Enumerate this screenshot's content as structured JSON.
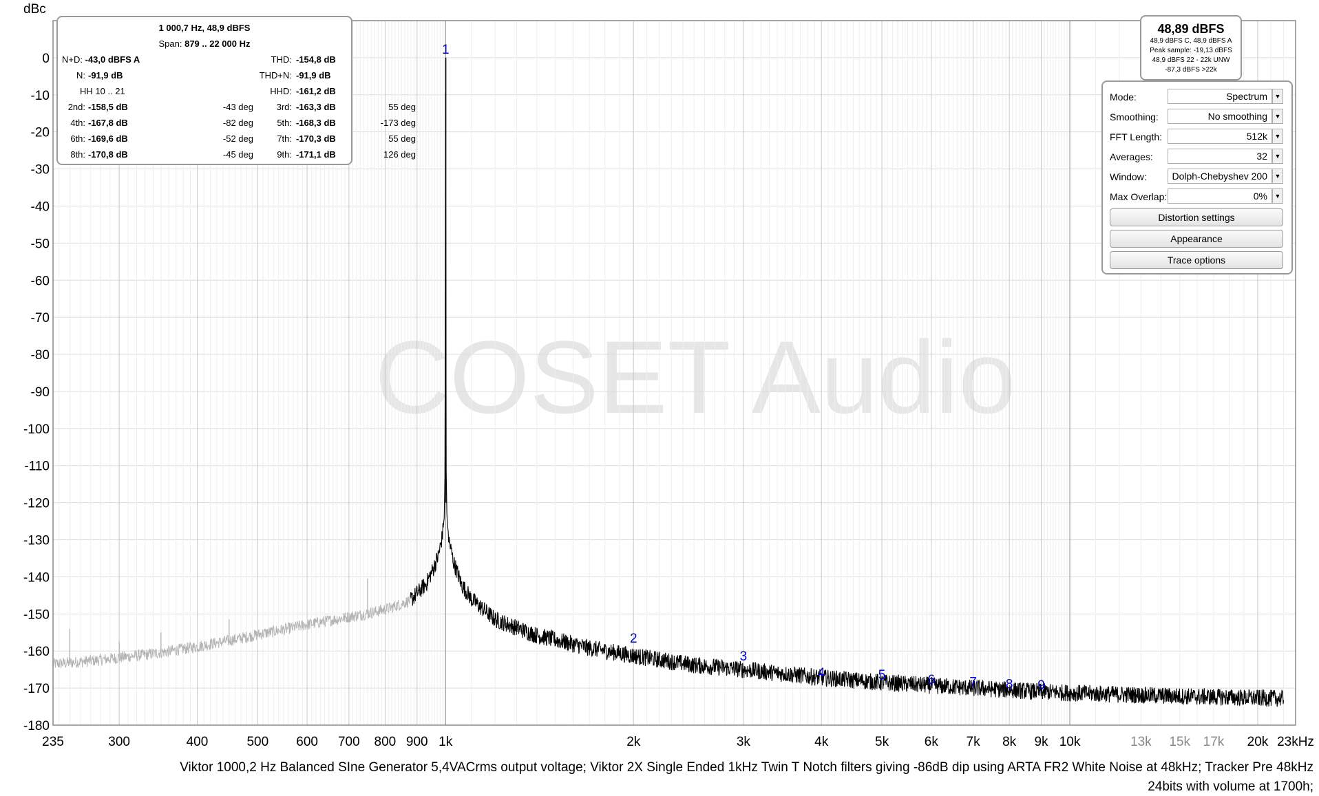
{
  "chart_data": {
    "type": "line",
    "ylabel": "dBc",
    "watermark": "COSET Audio",
    "x_scale": "log",
    "xlim": [
      235,
      23000
    ],
    "ylim": [
      -180,
      10
    ],
    "y_ticks": [
      0,
      -10,
      -20,
      -30,
      -40,
      -50,
      -60,
      -70,
      -80,
      -90,
      -100,
      -110,
      -120,
      -130,
      -140,
      -150,
      -160,
      -170,
      -180
    ],
    "x_ticks": [
      {
        "value": 235,
        "label": "235"
      },
      {
        "value": 300,
        "label": "300"
      },
      {
        "value": 400,
        "label": "400"
      },
      {
        "value": 500,
        "label": "500"
      },
      {
        "value": 600,
        "label": "600"
      },
      {
        "value": 700,
        "label": "700"
      },
      {
        "value": 800,
        "label": "800"
      },
      {
        "value": 900,
        "label": "900"
      },
      {
        "value": 1000,
        "label": "1k"
      },
      {
        "value": 2000,
        "label": "2k"
      },
      {
        "value": 3000,
        "label": "3k"
      },
      {
        "value": 4000,
        "label": "4k"
      },
      {
        "value": 5000,
        "label": "5k"
      },
      {
        "value": 6000,
        "label": "6k"
      },
      {
        "value": 7000,
        "label": "7k"
      },
      {
        "value": 8000,
        "label": "8k"
      },
      {
        "value": 9000,
        "label": "9k"
      },
      {
        "value": 10000,
        "label": "10k"
      },
      {
        "value": 13000,
        "label": "13k",
        "dim": true
      },
      {
        "value": 15000,
        "label": "15k",
        "dim": true
      },
      {
        "value": 17000,
        "label": "17k",
        "dim": true
      },
      {
        "value": 20000,
        "label": "20k"
      },
      {
        "value": 23000,
        "label": "23kHz"
      }
    ],
    "grid": true,
    "span": [
      879,
      22000
    ],
    "series": [
      {
        "color": "#b4b4b4",
        "x": [
          235,
          245,
          260,
          280,
          300,
          330,
          360,
          400,
          450,
          500,
          550,
          600,
          650,
          700,
          750,
          800,
          850,
          879
        ],
        "y": [
          -163.5,
          -163.3,
          -162.9,
          -162.4,
          -161.8,
          -161,
          -160.1,
          -158.8,
          -157.2,
          -155.6,
          -154.2,
          -152.9,
          -151.8,
          -150.8,
          -149.9,
          -148.8,
          -147.3,
          -146.3
        ],
        "spurs": [
          {
            "x": 250,
            "y": -154
          },
          {
            "x": 300,
            "y": -157.5
          },
          {
            "x": 350,
            "y": -155
          },
          {
            "x": 450,
            "y": -151.5
          },
          {
            "x": 750,
            "y": -140.5
          }
        ]
      },
      {
        "color": "#000000",
        "x": [
          879,
          900,
          930,
          955,
          975,
          988,
          995,
          998,
          1000,
          1002,
          1005,
          1012,
          1030,
          1060,
          1100,
          1200,
          1400,
          1700,
          2000,
          2500,
          3000,
          4000,
          5000,
          6000,
          7000,
          8000,
          9000,
          10000,
          13000,
          15000,
          17000,
          20000,
          22000
        ],
        "y": [
          -146.3,
          -144.5,
          -142,
          -138,
          -134,
          -129,
          -124,
          -110,
          0,
          -110,
          -124,
          -130,
          -136,
          -142,
          -146,
          -151.5,
          -155.8,
          -159.2,
          -161.3,
          -163.8,
          -165,
          -167.2,
          -168.5,
          -169.3,
          -170,
          -170.5,
          -171,
          -171.3,
          -171.9,
          -172.2,
          -172.4,
          -172.7,
          -172.8
        ]
      }
    ],
    "harmonics": [
      {
        "label": "1",
        "x": 1000,
        "y": 0
      },
      {
        "label": "2",
        "x": 2000,
        "y": -158.5
      },
      {
        "label": "3",
        "x": 3000,
        "y": -163.3
      },
      {
        "label": "4",
        "x": 4000,
        "y": -167.8
      },
      {
        "label": "5",
        "x": 5000,
        "y": -168.3
      },
      {
        "label": "6",
        "x": 6000,
        "y": -169.6
      },
      {
        "label": "7",
        "x": 7000,
        "y": -170.3
      },
      {
        "label": "8",
        "x": 8000,
        "y": -170.8
      },
      {
        "label": "9",
        "x": 9000,
        "y": -171.1
      }
    ],
    "caption": [
      "Viktor 1000,2 Hz Balanced SIne Generator 5,4VACrms output voltage; Viktor 2X Single Ended 1kHz Twin T Notch filters giving -86dB dip using ARTA FR2 White Noise at 48kHz; Tracker Pre 48kHz",
      "24bits with volume at 1700h;"
    ]
  },
  "stats": {
    "header": "1 000,7 Hz, 48,9 dBFS",
    "span_label": "Span:",
    "span_value": "879 .. 22 000 Hz",
    "nd_label": "N+D:",
    "nd_value": "-43,0 dBFS A",
    "thd_label": "THD:",
    "thd_value": "-154,8 dB",
    "n_label": "N:",
    "n_value": "-91,9 dB",
    "thdn_label": "THD+N:",
    "thdn_value": "-91,9 dB",
    "hh_label": "HH 10 .. 21",
    "hhd_label": "HHD:",
    "hhd_value": "-161,2 dB",
    "harmonic_rows": [
      {
        "l1": "2nd:",
        "v1": "-158,5 dB",
        "p1": "-43 deg",
        "l2": "3rd:",
        "v2": "-163,3 dB",
        "p2": "55 deg"
      },
      {
        "l1": "4th:",
        "v1": "-167,8 dB",
        "p1": "-82 deg",
        "l2": "5th:",
        "v2": "-168,3 dB",
        "p2": "-173 deg"
      },
      {
        "l1": "6th:",
        "v1": "-169,6 dB",
        "p1": "-52 deg",
        "l2": "7th:",
        "v2": "-170,3 dB",
        "p2": "55 deg"
      },
      {
        "l1": "8th:",
        "v1": "-170,8 dB",
        "p1": "-45 deg",
        "l2": "9th:",
        "v2": "-171,1 dB",
        "p2": "126 deg"
      }
    ]
  },
  "level": {
    "value": "48,89 dBFS",
    "line1": "48,9 dBFS C, 48,9 dBFS A",
    "line2": "Peak sample: -19,13 dBFS",
    "line3": "48,9 dBFS 22 - 22k UNW",
    "line4": "-87,3 dBFS >22k"
  },
  "settings": {
    "mode_label": "Mode:",
    "mode_value": "Spectrum",
    "smoothing_label": "Smoothing:",
    "smoothing_value": "No  smoothing",
    "fft_label": "FFT Length:",
    "fft_value": "512k",
    "averages_label": "Averages:",
    "averages_value": "32",
    "window_label": "Window:",
    "window_value": "Dolph-Chebyshev 200",
    "overlap_label": "Max Overlap:",
    "overlap_value": "0%",
    "btn_distortion": "Distortion settings",
    "btn_appearance": "Appearance",
    "btn_trace": "Trace options"
  }
}
